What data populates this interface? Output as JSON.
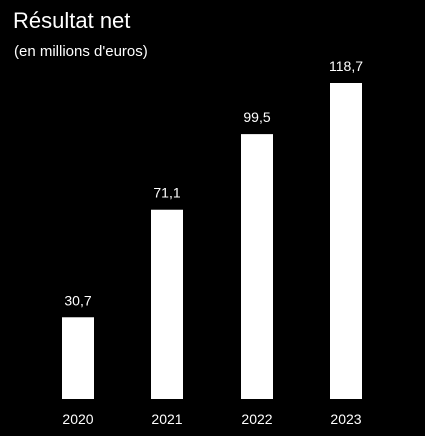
{
  "chart_data": {
    "type": "bar",
    "title": "Résultat net",
    "subtitle": "(en millions d'euros)",
    "categories": [
      "2020",
      "2021",
      "2022",
      "2023"
    ],
    "values": [
      30.7,
      71.1,
      99.5,
      118.7
    ],
    "value_labels": [
      "30,7",
      "71,1",
      "99,5",
      "118,7"
    ],
    "xlabel": "",
    "ylabel": "",
    "ylim": [
      0,
      118.7
    ],
    "grid": false,
    "legend": "none",
    "bar_color": "#ffffff",
    "background_color": "#000000"
  }
}
